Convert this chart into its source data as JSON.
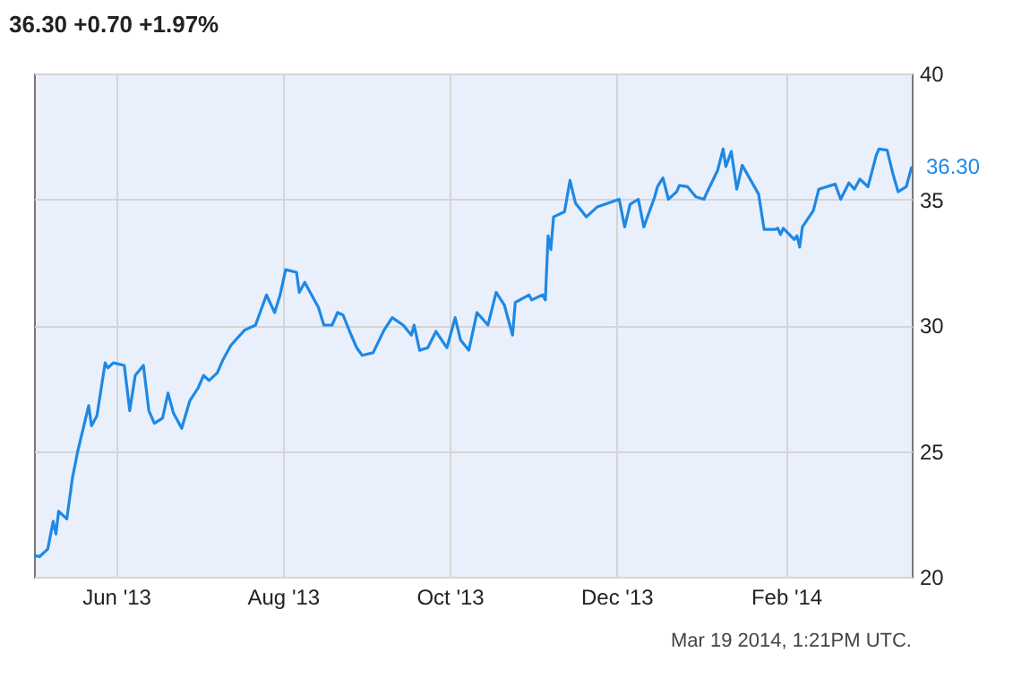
{
  "chart_data": {
    "type": "line",
    "title": "36.30 +0.70 +1.97%",
    "x": [
      "2013-05-02",
      "2013-05-04",
      "2013-05-07",
      "2013-05-09",
      "2013-05-10",
      "2013-05-11",
      "2013-05-14",
      "2013-05-16",
      "2013-05-18",
      "2013-05-22",
      "2013-05-23",
      "2013-05-25",
      "2013-05-28",
      "2013-05-29",
      "2013-05-31",
      "2013-06-04",
      "2013-06-06",
      "2013-06-08",
      "2013-06-11",
      "2013-06-13",
      "2013-06-15",
      "2013-06-18",
      "2013-06-20",
      "2013-06-22",
      "2013-06-25",
      "2013-06-28",
      "2013-07-01",
      "2013-07-03",
      "2013-07-05",
      "2013-07-08",
      "2013-07-10",
      "2013-07-13",
      "2013-07-18",
      "2013-07-22",
      "2013-07-26",
      "2013-07-29",
      "2013-07-31",
      "2013-08-02",
      "2013-08-06",
      "2013-08-07",
      "2013-08-09",
      "2013-08-14",
      "2013-08-16",
      "2013-08-19",
      "2013-08-21",
      "2013-08-23",
      "2013-08-26",
      "2013-08-28",
      "2013-08-30",
      "2013-09-03",
      "2013-09-07",
      "2013-09-10",
      "2013-09-14",
      "2013-09-17",
      "2013-09-18",
      "2013-09-20",
      "2013-09-23",
      "2013-09-26",
      "2013-09-30",
      "2013-10-03",
      "2013-10-05",
      "2013-10-08",
      "2013-10-11",
      "2013-10-15",
      "2013-10-18",
      "2013-10-21",
      "2013-10-24",
      "2013-10-25",
      "2013-10-30",
      "2013-10-31",
      "2013-11-04",
      "2013-11-05",
      "2013-11-06",
      "2013-11-07",
      "2013-11-08",
      "2013-11-12",
      "2013-11-14",
      "2013-11-16",
      "2013-11-20",
      "2013-11-24",
      "2013-12-02",
      "2013-12-04",
      "2013-12-06",
      "2013-12-09",
      "2013-12-11",
      "2013-12-15",
      "2013-12-16",
      "2013-12-18",
      "2013-12-20",
      "2013-12-23",
      "2013-12-24",
      "2013-12-27",
      "2013-12-30",
      "2014-01-02",
      "2014-01-03",
      "2014-01-07",
      "2014-01-09",
      "2014-01-10",
      "2014-01-12",
      "2014-01-14",
      "2014-01-16",
      "2014-01-22",
      "2014-01-24",
      "2014-01-28",
      "2014-01-29",
      "2014-01-30",
      "2014-01-31",
      "2014-02-04",
      "2014-02-05",
      "2014-02-06",
      "2014-02-07",
      "2014-02-11",
      "2014-02-13",
      "2014-02-19",
      "2014-02-21",
      "2014-02-24",
      "2014-02-26",
      "2014-02-28",
      "2014-03-03",
      "2014-03-06",
      "2014-03-07",
      "2014-03-10",
      "2014-03-12",
      "2014-03-14",
      "2014-03-17",
      "2014-03-19"
    ],
    "series": [
      {
        "color": "#1e88e5",
        "values": [
          20.85,
          20.8,
          21.1,
          22.2,
          21.7,
          22.6,
          22.3,
          23.9,
          25.0,
          26.8,
          26.0,
          26.4,
          28.5,
          28.3,
          28.5,
          28.4,
          26.6,
          28.0,
          28.4,
          26.6,
          26.1,
          26.3,
          27.3,
          26.5,
          25.9,
          27.0,
          27.5,
          28.0,
          27.8,
          28.1,
          28.6,
          29.2,
          29.8,
          30.0,
          31.2,
          30.5,
          31.2,
          32.2,
          32.1,
          31.3,
          31.7,
          30.7,
          30.0,
          30.0,
          30.5,
          30.4,
          29.6,
          29.1,
          28.8,
          28.9,
          29.8,
          30.3,
          30.0,
          29.6,
          30.0,
          29.0,
          29.1,
          29.75,
          29.1,
          30.3,
          29.4,
          29.0,
          30.5,
          30.0,
          31.3,
          30.8,
          29.6,
          30.9,
          31.2,
          31.0,
          31.2,
          31.0,
          33.55,
          33.0,
          34.3,
          34.5,
          35.75,
          34.85,
          34.3,
          34.7,
          35.0,
          33.9,
          34.8,
          35.0,
          33.9,
          35.1,
          35.5,
          35.85,
          35.0,
          35.3,
          35.55,
          35.5,
          35.1,
          35.0,
          35.25,
          36.15,
          37.0,
          36.3,
          36.9,
          35.4,
          36.35,
          35.2,
          33.8,
          33.8,
          33.85,
          33.6,
          33.85,
          33.4,
          33.55,
          33.1,
          33.9,
          34.55,
          35.4,
          35.6,
          35.0,
          35.65,
          35.4,
          35.8,
          35.5,
          36.75,
          37.0,
          36.95,
          36.05,
          35.3,
          35.5,
          36.3
        ]
      }
    ],
    "xlim": [
      "2013-05-02",
      "2014-03-19"
    ],
    "xticks": [
      {
        "value": "2013-06-01",
        "label": "Jun '13"
      },
      {
        "value": "2013-08-01",
        "label": "Aug '13"
      },
      {
        "value": "2013-10-01",
        "label": "Oct '13"
      },
      {
        "value": "2013-12-01",
        "label": "Dec '13"
      },
      {
        "value": "2014-02-01",
        "label": "Feb '14"
      }
    ],
    "ylim": [
      20,
      40
    ],
    "yticks": [
      20,
      25,
      30,
      35,
      40
    ],
    "grid": true,
    "marker": "none",
    "line_style": "solid",
    "annotations": [
      {
        "text": "36.30",
        "x": "2014-03-19",
        "y": 36.3
      },
      "Mar 19 2014, 1:21PM UTC."
    ]
  }
}
